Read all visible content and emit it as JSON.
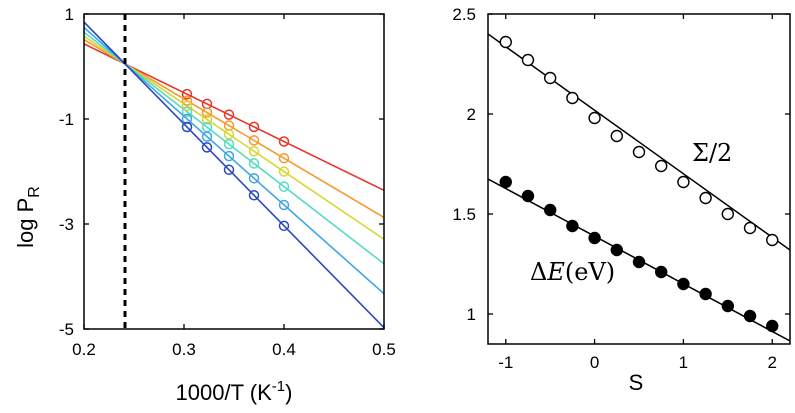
{
  "chart_data": [
    {
      "type": "line",
      "title": "",
      "xlabel": "1000/T (K",
      "xlabel_sup": "-1",
      "xlabel_close": ")",
      "ylabel": "log P",
      "ylabel_sub": "R",
      "xlim": [
        0.2,
        0.5
      ],
      "ylim": [
        -5,
        1
      ],
      "xticks": [
        "0.2",
        "0.3",
        "0.4",
        "0.5"
      ],
      "xtick_values": [
        0.2,
        0.3,
        0.4,
        0.5
      ],
      "yticks": [
        "1",
        "-1",
        "-3",
        "-5"
      ],
      "ytick_values": [
        1,
        -1,
        -3,
        -5
      ],
      "pivot_x": 0.241,
      "pivot_y": 0.05,
      "vline_x": 0.241,
      "marker_x": [
        0.303,
        0.323,
        0.345,
        0.37,
        0.4
      ],
      "series": [
        {
          "name": "red",
          "color": "#e8352a",
          "slope": -9.3
        },
        {
          "name": "orange",
          "color": "#f49a2e",
          "slope": -11.3
        },
        {
          "name": "yellow",
          "color": "#d9d633",
          "slope": -12.9
        },
        {
          "name": "cyan",
          "color": "#55dcc4",
          "slope": -14.7
        },
        {
          "name": "lightblue",
          "color": "#3ea6e6",
          "slope": -16.9
        },
        {
          "name": "blue",
          "color": "#2a47c4",
          "slope": -19.4
        }
      ]
    },
    {
      "type": "scatter",
      "title": "",
      "xlabel": "S",
      "ylabel": "",
      "xlim": [
        -1.2,
        2.2
      ],
      "ylim": [
        0.85,
        2.5
      ],
      "xticks": [
        "-1",
        "0",
        "1",
        "2"
      ],
      "xtick_values": [
        -1,
        0,
        1,
        2
      ],
      "yticks": [
        "2.5",
        "2",
        "1.5",
        "1"
      ],
      "ytick_values": [
        2.5,
        2,
        1.5,
        1
      ],
      "series": [
        {
          "name": "Σ/2",
          "filled": false,
          "x": [
            -1,
            -0.75,
            -0.5,
            -0.25,
            0,
            0.25,
            0.5,
            0.75,
            1,
            1.25,
            1.5,
            1.75,
            2
          ],
          "y": [
            2.36,
            2.27,
            2.18,
            2.08,
            1.98,
            1.89,
            1.81,
            1.74,
            1.66,
            1.58,
            1.5,
            1.43,
            1.37
          ],
          "fit": {
            "x": [
              -1.2,
              2.2
            ],
            "y": [
              2.4,
              1.32
            ]
          }
        },
        {
          "name": "ΔE(eV)",
          "filled": true,
          "x": [
            -1,
            -0.75,
            -0.5,
            -0.25,
            0,
            0.25,
            0.5,
            0.75,
            1,
            1.25,
            1.5,
            1.75,
            2
          ],
          "y": [
            1.66,
            1.59,
            1.52,
            1.44,
            1.38,
            1.32,
            1.26,
            1.21,
            1.15,
            1.1,
            1.04,
            0.99,
            0.94
          ],
          "fit": {
            "x": [
              -1.2,
              2.2
            ],
            "y": [
              1.675,
              0.865
            ]
          }
        }
      ],
      "annotations": {
        "sigma": {
          "symbol": "Σ",
          "rest": "/2"
        },
        "delta": {
          "symbol": "Δ",
          "var": "E",
          "unit": "(eV)"
        }
      }
    }
  ]
}
